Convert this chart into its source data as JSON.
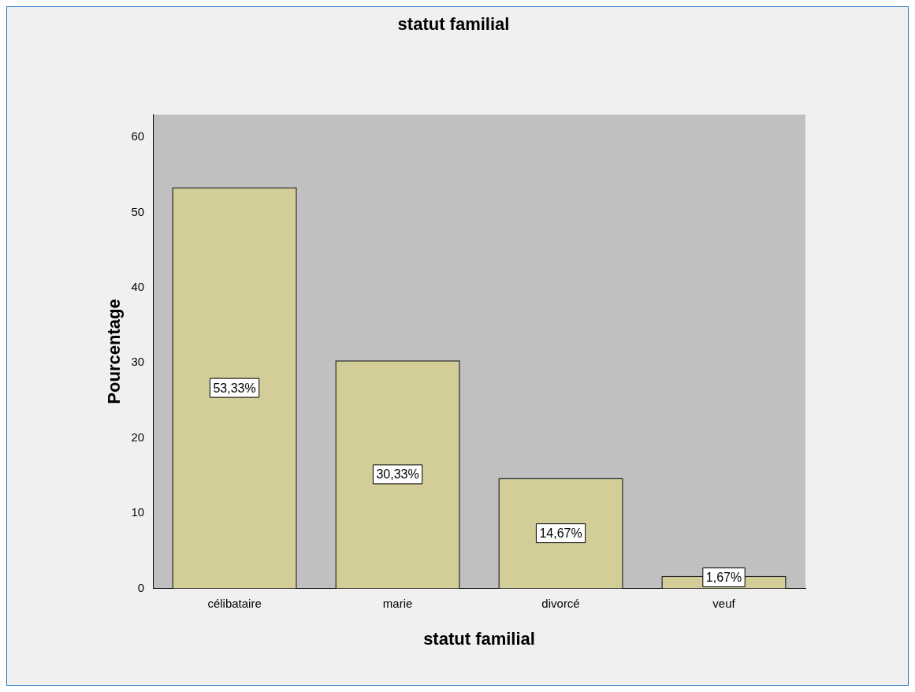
{
  "chart_data": {
    "type": "bar",
    "title": "statut familial",
    "xlabel": "statut familial",
    "ylabel": "Pourcentage",
    "categories": [
      "célibataire",
      "marie",
      "divorcé",
      "veuf"
    ],
    "values": [
      53.33,
      30.33,
      14.67,
      1.67
    ],
    "value_labels": [
      "53,33%",
      "30,33%",
      "14,67%",
      "1,67%"
    ],
    "color": "#d3ce97",
    "ylim": [
      0,
      63
    ],
    "yticks": [
      0,
      10,
      20,
      30,
      40,
      50,
      60
    ],
    "grid": false,
    "legend": false
  }
}
